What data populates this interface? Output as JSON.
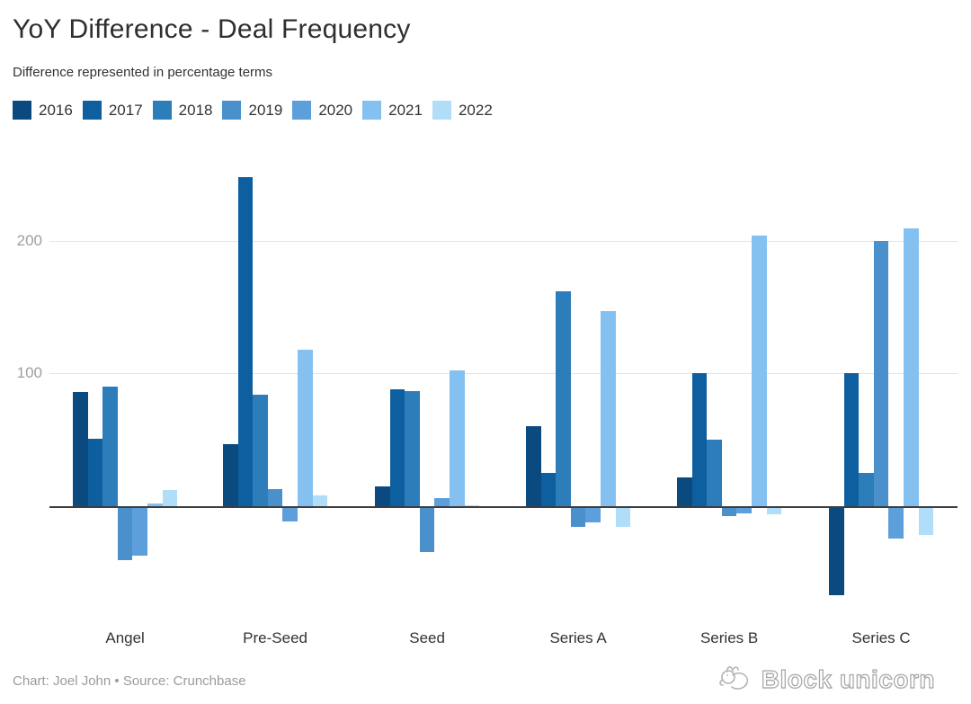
{
  "header": {
    "title": "YoY Difference - Deal Frequency",
    "subtitle": "Difference represented in percentage terms"
  },
  "footer": {
    "credit": "Chart: Joel John • Source: Crunchbase"
  },
  "watermark": {
    "label": "Block unicorn",
    "icon": "block-unicorn-logo-icon"
  },
  "colors": {
    "background": "#ffffff",
    "gridline": "#e4e4e4",
    "zero_axis": "#3d3d3d",
    "axis_text": "#9e9e9e",
    "text": "#333333"
  },
  "chart_data": {
    "type": "bar",
    "title": "YoY Difference - Deal Frequency",
    "subtitle": "Difference represented in percentage terms",
    "xlabel": "",
    "ylabel": "",
    "categories": [
      "Angel",
      "Pre-Seed",
      "Seed",
      "Series A",
      "Series B",
      "Series C"
    ],
    "series": [
      {
        "name": "2016",
        "color": "#0b4a7e",
        "values": [
          86,
          47,
          15,
          60,
          22,
          -66
        ]
      },
      {
        "name": "2017",
        "color": "#0e5fa0",
        "values": [
          51,
          248,
          88,
          25,
          100,
          100
        ]
      },
      {
        "name": "2018",
        "color": "#2d7dbb",
        "values": [
          90,
          84,
          87,
          162,
          50,
          25
        ]
      },
      {
        "name": "2019",
        "color": "#4a90ca",
        "values": [
          -39,
          13,
          -33,
          -14,
          -6,
          200
        ]
      },
      {
        "name": "2020",
        "color": "#5d9fdb",
        "values": [
          -36,
          -10,
          6,
          -11,
          -4,
          -23
        ]
      },
      {
        "name": "2021",
        "color": "#84c1f0",
        "values": [
          2,
          118,
          102,
          147,
          204,
          209
        ]
      },
      {
        "name": "2022",
        "color": "#b0def8",
        "values": [
          12,
          8,
          1,
          -14,
          -5,
          -20
        ]
      }
    ],
    "yticks": [
      100,
      200
    ],
    "ylim": [
      -70,
      260
    ],
    "grid": true,
    "legend_position": "top"
  }
}
